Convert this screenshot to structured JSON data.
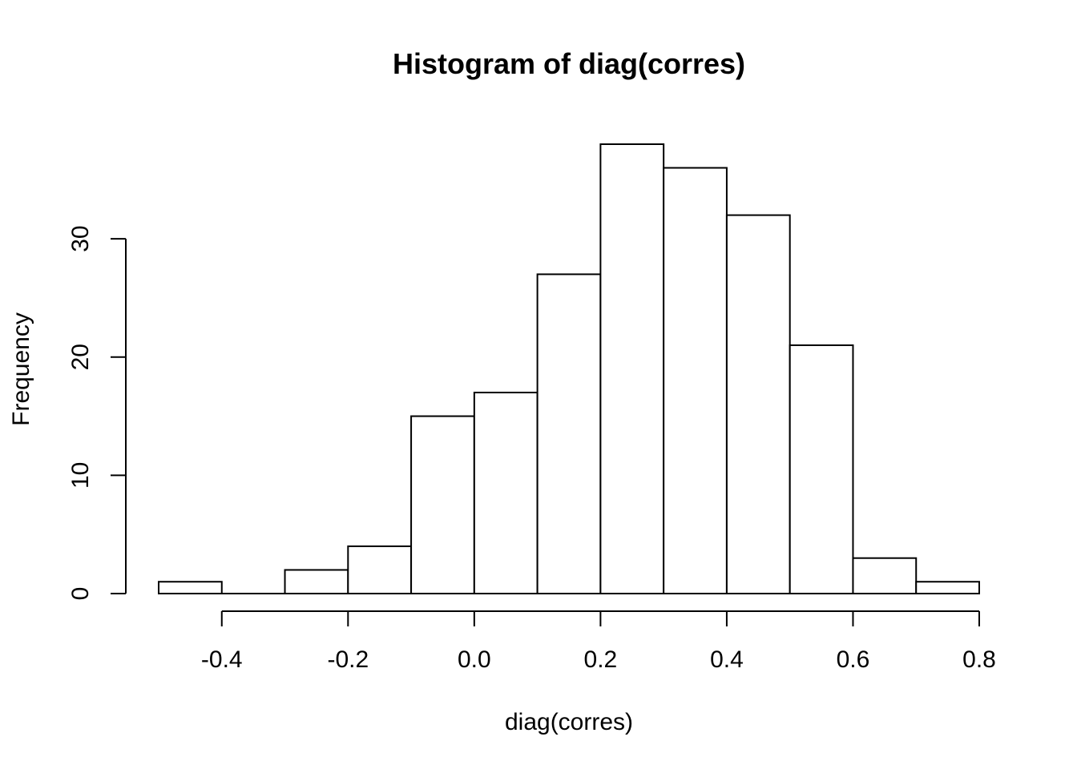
{
  "chart_data": {
    "type": "bar",
    "subtype": "histogram",
    "title": "Histogram of diag(corres)",
    "xlabel": "diag(corres)",
    "ylabel": "Frequency",
    "bins": [
      {
        "from": -0.5,
        "to": -0.4,
        "count": 1
      },
      {
        "from": -0.4,
        "to": -0.3,
        "count": 0
      },
      {
        "from": -0.3,
        "to": -0.2,
        "count": 2
      },
      {
        "from": -0.2,
        "to": -0.1,
        "count": 4
      },
      {
        "from": -0.1,
        "to": 0.0,
        "count": 15
      },
      {
        "from": 0.0,
        "to": 0.1,
        "count": 17
      },
      {
        "from": 0.1,
        "to": 0.2,
        "count": 27
      },
      {
        "from": 0.2,
        "to": 0.3,
        "count": 38
      },
      {
        "from": 0.3,
        "to": 0.4,
        "count": 36
      },
      {
        "from": 0.4,
        "to": 0.5,
        "count": 32
      },
      {
        "from": 0.5,
        "to": 0.6,
        "count": 21
      },
      {
        "from": 0.6,
        "to": 0.7,
        "count": 3
      },
      {
        "from": 0.7,
        "to": 0.8,
        "count": 1
      }
    ],
    "xlim": [
      -0.5,
      0.8
    ],
    "ylim": [
      0,
      38
    ],
    "x_ticks": [
      -0.4,
      -0.2,
      0.0,
      0.2,
      0.4,
      0.6,
      0.8
    ],
    "x_tick_labels": [
      "-0.4",
      "-0.2",
      "0.0",
      "0.2",
      "0.4",
      "0.6",
      "0.8"
    ],
    "y_ticks": [
      0,
      10,
      20,
      30
    ],
    "y_tick_labels": [
      "0",
      "10",
      "20",
      "30"
    ],
    "grid": false,
    "legend": "none",
    "colors": {
      "bar_fill": "#ffffff",
      "bar_stroke": "#000000",
      "axis": "#000000",
      "background": "#ffffff"
    }
  }
}
